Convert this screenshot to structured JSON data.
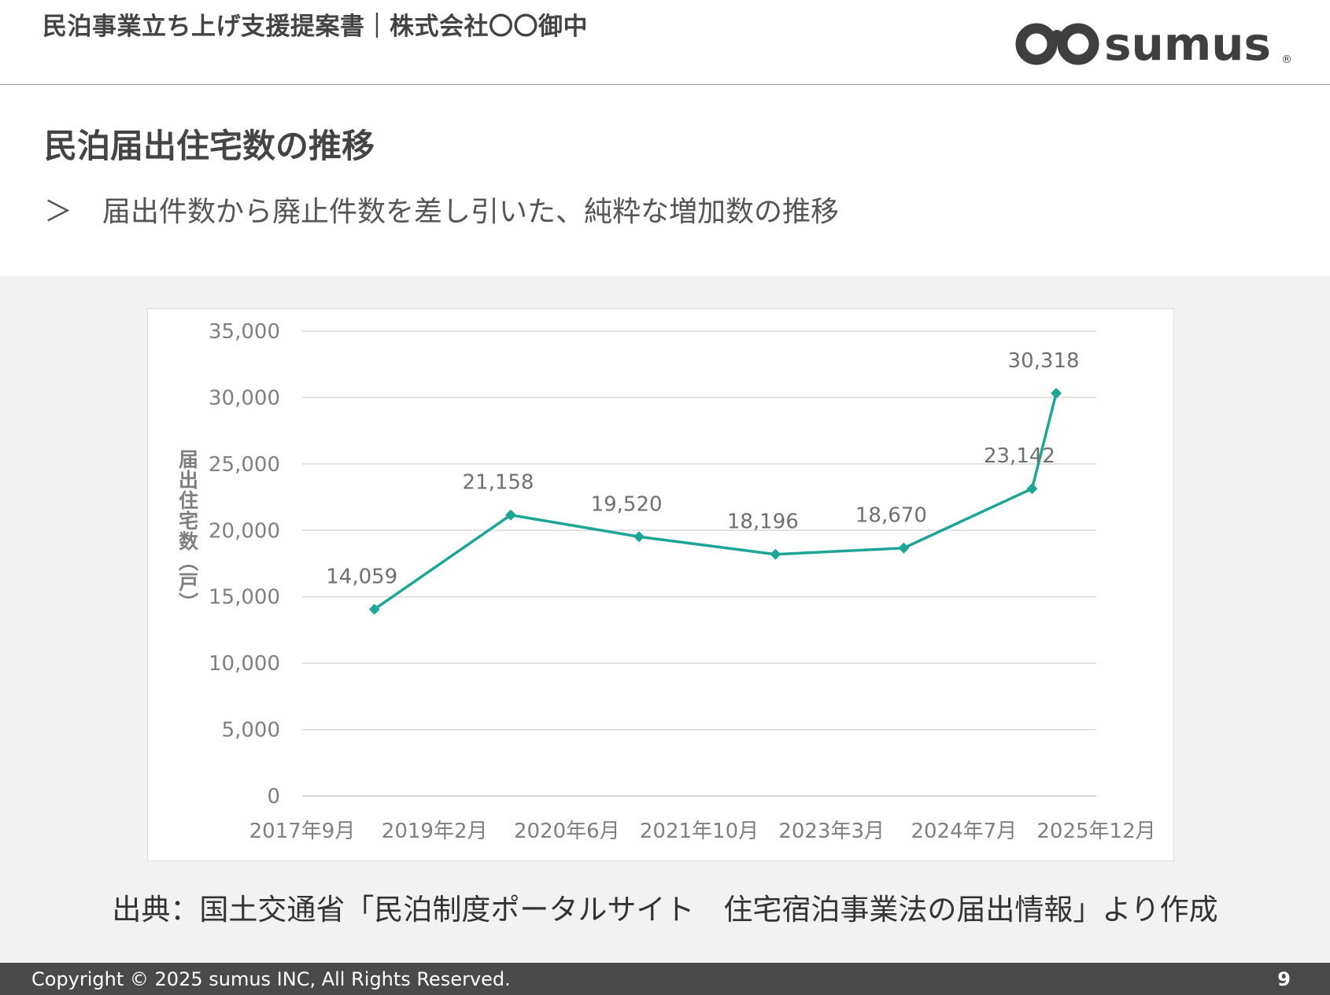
{
  "header": {
    "doc_title": "民泊事業立ち上げ支援提案書｜株式会社〇〇御中",
    "logo_text": "sumus",
    "logo_mark": "®"
  },
  "section": {
    "title": "民泊届出住宅数の推移",
    "bullet_marker": "＞",
    "bullet_text": "届出件数から廃止件数を差し引いた、純粋な増加数の推移"
  },
  "chart_data": {
    "type": "line",
    "x_ticks": [
      "2017年9月",
      "2019年2月",
      "2020年6月",
      "2021年10月",
      "2023年3月",
      "2024年7月",
      "2025年12月"
    ],
    "series": [
      {
        "color": "#1fa596",
        "points": [
          {
            "x": "2018-06",
            "y": 14059,
            "label": "14,059"
          },
          {
            "x": "2019-11",
            "y": 21158,
            "label": "21,158"
          },
          {
            "x": "2021-03",
            "y": 19520,
            "label": "19,520"
          },
          {
            "x": "2022-08",
            "y": 18196,
            "label": "18,196"
          },
          {
            "x": "2023-12",
            "y": 18670,
            "label": "18,670"
          },
          {
            "x": "2025-04",
            "y": 23142,
            "label": "23,142"
          },
          {
            "x": "2025-07",
            "y": 30318,
            "label": "30,318"
          }
        ]
      }
    ],
    "ylabel": "届出住宅数（戸）",
    "ylim": [
      0,
      35000
    ],
    "y_ticks": [
      "0",
      "5,000",
      "10,000",
      "15,000",
      "20,000",
      "25,000",
      "30,000",
      "35,000"
    ],
    "grid": true,
    "legend": "none"
  },
  "source_note": "出典：国土交通省「民泊制度ポータルサイト　住宅宿泊事業法の届出情報」より作成",
  "footer": {
    "copyright": "Copyright © 2025 sumus INC, All Rights Reserved.",
    "page_number": "9"
  }
}
